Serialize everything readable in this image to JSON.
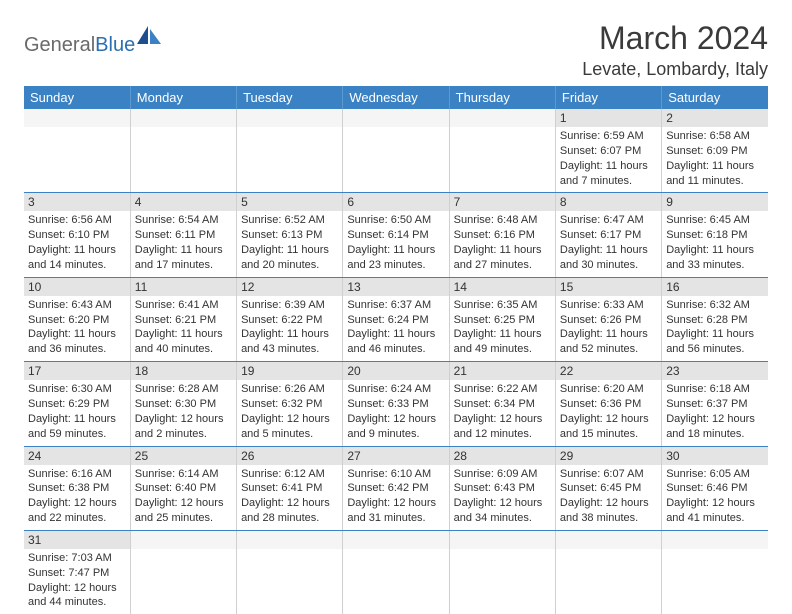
{
  "logo": {
    "gray": "General",
    "blue": "Blue"
  },
  "title": "March 2024",
  "location": "Levate, Lombardy, Italy",
  "colors": {
    "header_bg": "#3b82c4",
    "header_text": "#ffffff",
    "daynum_bg": "#e4e4e4",
    "row_divider": "#3b82c4",
    "cell_divider": "#d0d0d0",
    "body_text": "#333333"
  },
  "day_labels": [
    "Sunday",
    "Monday",
    "Tuesday",
    "Wednesday",
    "Thursday",
    "Friday",
    "Saturday"
  ],
  "weeks": [
    [
      null,
      null,
      null,
      null,
      null,
      {
        "n": "1",
        "sunrise": "6:59 AM",
        "sunset": "6:07 PM",
        "daylight": "11 hours and 7 minutes."
      },
      {
        "n": "2",
        "sunrise": "6:58 AM",
        "sunset": "6:09 PM",
        "daylight": "11 hours and 11 minutes."
      }
    ],
    [
      {
        "n": "3",
        "sunrise": "6:56 AM",
        "sunset": "6:10 PM",
        "daylight": "11 hours and 14 minutes."
      },
      {
        "n": "4",
        "sunrise": "6:54 AM",
        "sunset": "6:11 PM",
        "daylight": "11 hours and 17 minutes."
      },
      {
        "n": "5",
        "sunrise": "6:52 AM",
        "sunset": "6:13 PM",
        "daylight": "11 hours and 20 minutes."
      },
      {
        "n": "6",
        "sunrise": "6:50 AM",
        "sunset": "6:14 PM",
        "daylight": "11 hours and 23 minutes."
      },
      {
        "n": "7",
        "sunrise": "6:48 AM",
        "sunset": "6:16 PM",
        "daylight": "11 hours and 27 minutes."
      },
      {
        "n": "8",
        "sunrise": "6:47 AM",
        "sunset": "6:17 PM",
        "daylight": "11 hours and 30 minutes."
      },
      {
        "n": "9",
        "sunrise": "6:45 AM",
        "sunset": "6:18 PM",
        "daylight": "11 hours and 33 minutes."
      }
    ],
    [
      {
        "n": "10",
        "sunrise": "6:43 AM",
        "sunset": "6:20 PM",
        "daylight": "11 hours and 36 minutes."
      },
      {
        "n": "11",
        "sunrise": "6:41 AM",
        "sunset": "6:21 PM",
        "daylight": "11 hours and 40 minutes."
      },
      {
        "n": "12",
        "sunrise": "6:39 AM",
        "sunset": "6:22 PM",
        "daylight": "11 hours and 43 minutes."
      },
      {
        "n": "13",
        "sunrise": "6:37 AM",
        "sunset": "6:24 PM",
        "daylight": "11 hours and 46 minutes."
      },
      {
        "n": "14",
        "sunrise": "6:35 AM",
        "sunset": "6:25 PM",
        "daylight": "11 hours and 49 minutes."
      },
      {
        "n": "15",
        "sunrise": "6:33 AM",
        "sunset": "6:26 PM",
        "daylight": "11 hours and 52 minutes."
      },
      {
        "n": "16",
        "sunrise": "6:32 AM",
        "sunset": "6:28 PM",
        "daylight": "11 hours and 56 minutes."
      }
    ],
    [
      {
        "n": "17",
        "sunrise": "6:30 AM",
        "sunset": "6:29 PM",
        "daylight": "11 hours and 59 minutes."
      },
      {
        "n": "18",
        "sunrise": "6:28 AM",
        "sunset": "6:30 PM",
        "daylight": "12 hours and 2 minutes."
      },
      {
        "n": "19",
        "sunrise": "6:26 AM",
        "sunset": "6:32 PM",
        "daylight": "12 hours and 5 minutes."
      },
      {
        "n": "20",
        "sunrise": "6:24 AM",
        "sunset": "6:33 PM",
        "daylight": "12 hours and 9 minutes."
      },
      {
        "n": "21",
        "sunrise": "6:22 AM",
        "sunset": "6:34 PM",
        "daylight": "12 hours and 12 minutes."
      },
      {
        "n": "22",
        "sunrise": "6:20 AM",
        "sunset": "6:36 PM",
        "daylight": "12 hours and 15 minutes."
      },
      {
        "n": "23",
        "sunrise": "6:18 AM",
        "sunset": "6:37 PM",
        "daylight": "12 hours and 18 minutes."
      }
    ],
    [
      {
        "n": "24",
        "sunrise": "6:16 AM",
        "sunset": "6:38 PM",
        "daylight": "12 hours and 22 minutes."
      },
      {
        "n": "25",
        "sunrise": "6:14 AM",
        "sunset": "6:40 PM",
        "daylight": "12 hours and 25 minutes."
      },
      {
        "n": "26",
        "sunrise": "6:12 AM",
        "sunset": "6:41 PM",
        "daylight": "12 hours and 28 minutes."
      },
      {
        "n": "27",
        "sunrise": "6:10 AM",
        "sunset": "6:42 PM",
        "daylight": "12 hours and 31 minutes."
      },
      {
        "n": "28",
        "sunrise": "6:09 AM",
        "sunset": "6:43 PM",
        "daylight": "12 hours and 34 minutes."
      },
      {
        "n": "29",
        "sunrise": "6:07 AM",
        "sunset": "6:45 PM",
        "daylight": "12 hours and 38 minutes."
      },
      {
        "n": "30",
        "sunrise": "6:05 AM",
        "sunset": "6:46 PM",
        "daylight": "12 hours and 41 minutes."
      }
    ],
    [
      {
        "n": "31",
        "sunrise": "7:03 AM",
        "sunset": "7:47 PM",
        "daylight": "12 hours and 44 minutes."
      },
      null,
      null,
      null,
      null,
      null,
      null
    ]
  ]
}
